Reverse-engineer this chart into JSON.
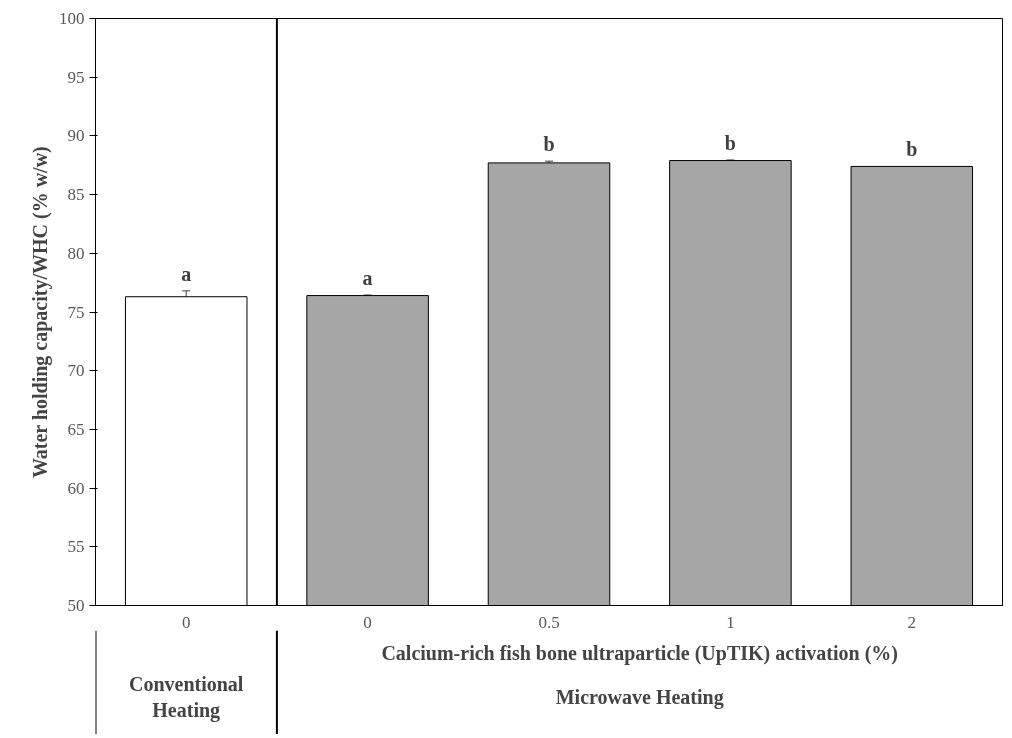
{
  "chart_data": {
    "type": "bar",
    "categories": [
      "0",
      "0",
      "0.5",
      "1",
      "2"
    ],
    "values": [
      76.3,
      76.4,
      87.7,
      87.9,
      87.4
    ],
    "colors": [
      "#ffffff",
      "#a6a6a6",
      "#a6a6a6",
      "#a6a6a6",
      "#a6a6a6"
    ],
    "errors": [
      0.5,
      0.05,
      0.15,
      0.05,
      null
    ],
    "value_labels": [
      "a",
      "a",
      "b",
      "b",
      "b"
    ],
    "ylim": [
      50,
      100
    ],
    "yticks": [
      50,
      55,
      60,
      65,
      70,
      75,
      80,
      85,
      90,
      95,
      100
    ],
    "ylabel": "Water holding capacity/WHC (% w/w)",
    "xlabel": "Calcium-rich fish bone ultraparticle (UpTIK) activation (%)",
    "annotations": [
      "Conventional\nHeating",
      "Microwave Heating"
    ],
    "grid": false
  }
}
